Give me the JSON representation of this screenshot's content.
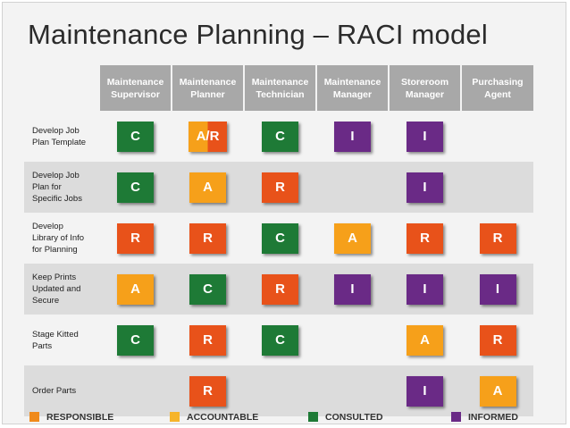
{
  "title": "Maintenance Planning – RACI model",
  "colors": {
    "R": "#e8521a",
    "A": "#f6a01a",
    "A/R": "#f09020",
    "C": "#1e7a36",
    "I": "#6a2a86",
    "legend_R": "#f08a1a",
    "legend_A": "#f6b42a",
    "legend_C": "#1e7a36",
    "legend_I": "#6a2a86"
  },
  "roles": [
    [
      "Maintenance",
      "Supervisor"
    ],
    [
      "Maintenance",
      "Planner"
    ],
    [
      "Maintenance",
      "Technician"
    ],
    [
      "Maintenance",
      "Manager"
    ],
    [
      "Storeroom",
      "Manager"
    ],
    [
      "Purchasing",
      "Agent"
    ]
  ],
  "rows": [
    {
      "task": [
        "Develop Job",
        "Plan Template"
      ],
      "cells": [
        "C",
        "A/R",
        "C",
        "I",
        "I",
        ""
      ]
    },
    {
      "task": [
        "Develop Job",
        "Plan for",
        "Specific Jobs"
      ],
      "cells": [
        "C",
        "A",
        "R",
        "",
        "I",
        ""
      ]
    },
    {
      "task": [
        "Develop",
        "Library of Info",
        "for Planning"
      ],
      "cells": [
        "R",
        "R",
        "C",
        "A",
        "R",
        "R"
      ]
    },
    {
      "task": [
        "Keep Prints",
        "Updated and",
        "Secure"
      ],
      "cells": [
        "A",
        "C",
        "R",
        "I",
        "I",
        "I"
      ]
    },
    {
      "task": [
        "Stage  Kitted",
        "Parts"
      ],
      "cells": [
        "C",
        "R",
        "C",
        "",
        "A",
        "R"
      ]
    },
    {
      "task": [
        "Order Parts"
      ],
      "cells": [
        "",
        "R",
        "",
        "",
        "I",
        "A"
      ]
    }
  ],
  "legend": [
    {
      "key": "R",
      "label": "RESPONSIBLE"
    },
    {
      "key": "A",
      "label": "ACCOUNTABLE"
    },
    {
      "key": "C",
      "label": "CONSULTED"
    },
    {
      "key": "I",
      "label": "INFORMED"
    }
  ]
}
